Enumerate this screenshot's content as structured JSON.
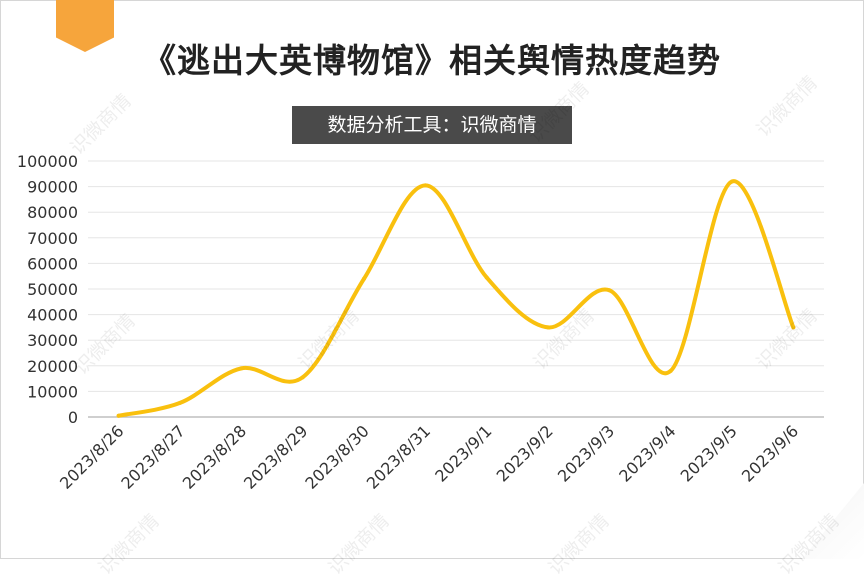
{
  "watermark_text": "识微商情",
  "chart_data": {
    "type": "line",
    "title": "《逃出大英博物馆》相关舆情热度趋势",
    "subtitle": "数据分析工具：识微商情",
    "xlabel": "",
    "ylabel": "",
    "categories": [
      "2023/8/26",
      "2023/8/27",
      "2023/8/28",
      "2023/8/29",
      "2023/8/30",
      "2023/8/31",
      "2023/9/1",
      "2023/9/2",
      "2023/9/3",
      "2023/9/4",
      "2023/9/5",
      "2023/9/6"
    ],
    "values": [
      500,
      5500,
      19000,
      15500,
      54000,
      90500,
      54500,
      35000,
      49500,
      18000,
      92000,
      35000
    ],
    "ylim": [
      0,
      100000
    ],
    "yticks": [
      "0",
      "10000",
      "20000",
      "30000",
      "40000",
      "50000",
      "60000",
      "70000",
      "80000",
      "90000",
      "100000"
    ],
    "grid": true,
    "line_color": "#f9c00e",
    "grid_color": "#e5e5e5",
    "axis_color": "#bfbfbf",
    "legend": "none"
  }
}
